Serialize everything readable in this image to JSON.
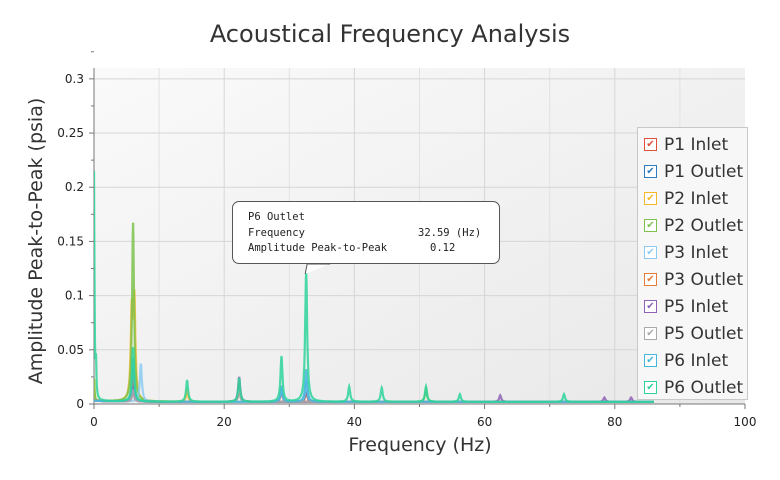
{
  "chart_data": {
    "type": "line",
    "title": "Acoustical Frequency Analysis",
    "xlabel": "Frequency (Hz)",
    "ylabel": "Amplitude Peak-to-Peak (psia)",
    "xlim": [
      0,
      100
    ],
    "ylim": [
      0,
      0.31
    ],
    "xticks": [
      "0",
      "20",
      "40",
      "60",
      "80",
      "100"
    ],
    "yticks": [
      "0",
      "0.05",
      "0.1",
      "0.15",
      "0.2",
      "0.25",
      "0.3"
    ],
    "grid": true,
    "legend_placement": "right",
    "x_end": 86,
    "series": [
      {
        "name": "P1 Inlet",
        "color": "#e0513a",
        "peaks": [
          [
            6.0,
            0.01
          ],
          [
            22.3,
            0.015
          ],
          [
            28.8,
            0.01
          ],
          [
            32.6,
            0.01
          ]
        ]
      },
      {
        "name": "P1 Outlet",
        "color": "#2f7bbf",
        "peaks": [
          [
            6.0,
            0.02
          ],
          [
            22.3,
            0.012
          ],
          [
            32.6,
            0.015
          ]
        ]
      },
      {
        "name": "P2 Inlet",
        "color": "#f5b829",
        "peaks": [
          [
            0,
            0.02
          ],
          [
            5.8,
            0.08
          ],
          [
            6.2,
            0.09
          ],
          [
            14.3,
            0.01
          ]
        ]
      },
      {
        "name": "P2 Outlet",
        "color": "#7dc24e",
        "peaks": [
          [
            0,
            0.02
          ],
          [
            6.0,
            0.165
          ],
          [
            22.3,
            0.012
          ],
          [
            51.0,
            0.012
          ]
        ]
      },
      {
        "name": "P3 Inlet",
        "color": "#8ccbf0",
        "peaks": [
          [
            7.2,
            0.035
          ],
          [
            32.6,
            0.02
          ],
          [
            28.8,
            0.015
          ]
        ]
      },
      {
        "name": "P3 Outlet",
        "color": "#e67c3a",
        "peaks": [
          [
            6.0,
            0.03
          ],
          [
            22.3,
            0.018
          ]
        ]
      },
      {
        "name": "P5 Inlet",
        "color": "#8e62b5",
        "peaks": [
          [
            6.0,
            0.012
          ],
          [
            22.3,
            0.023
          ],
          [
            62.4,
            0.006
          ],
          [
            78.4,
            0.004
          ],
          [
            82.5,
            0.004
          ]
        ]
      },
      {
        "name": "P5 Outlet",
        "color": "#aaaaaa",
        "peaks": [
          [
            6.0,
            0.01
          ],
          [
            22.3,
            0.01
          ]
        ]
      },
      {
        "name": "P6 Inlet",
        "color": "#44b7dd",
        "peaks": [
          [
            6.0,
            0.04
          ],
          [
            32.6,
            0.03
          ],
          [
            28.8,
            0.012
          ]
        ]
      },
      {
        "name": "P6 Outlet",
        "color": "#2ed39a",
        "peaks": [
          [
            0,
            0.21
          ],
          [
            0.3,
            0.03
          ],
          [
            6.0,
            0.05
          ],
          [
            14.3,
            0.02
          ],
          [
            22.3,
            0.022
          ],
          [
            28.8,
            0.042
          ],
          [
            32.59,
            0.12
          ],
          [
            39.2,
            0.014
          ],
          [
            44.2,
            0.013
          ],
          [
            51.0,
            0.014
          ],
          [
            56.2,
            0.007
          ],
          [
            72.2,
            0.007
          ]
        ]
      }
    ]
  },
  "tooltip": {
    "series": "P6 Outlet",
    "frequency_label": "Frequency",
    "frequency_value": "32.59 (Hz)",
    "amplitude_label": "Amplitude Peak-to-Peak",
    "amplitude_value": "0.12",
    "point": [
      32.59,
      0.12
    ]
  }
}
